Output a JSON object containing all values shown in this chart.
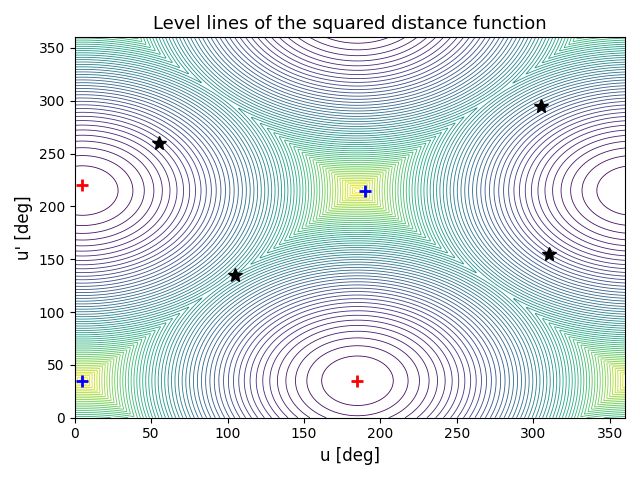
{
  "title": "Level lines of the squared distance function",
  "xlabel": "u [deg]",
  "ylabel": "u' [deg]",
  "xlim": [
    0,
    360
  ],
  "ylim": [
    0,
    360
  ],
  "xticks": [
    0,
    50,
    100,
    150,
    200,
    250,
    300,
    350
  ],
  "yticks": [
    0,
    50,
    100,
    150,
    200,
    250,
    300,
    350
  ],
  "n_contour_levels": 60,
  "colormap": "viridis",
  "blue_plus_points": [
    [
      5,
      35
    ],
    [
      190,
      215
    ]
  ],
  "red_plus_points": [
    [
      5,
      220
    ],
    [
      185,
      35
    ]
  ],
  "black_star_points": [
    [
      55,
      260
    ],
    [
      105,
      135
    ],
    [
      305,
      295
    ],
    [
      310,
      155
    ]
  ],
  "marker_size_plus": 8,
  "marker_size_star": 10,
  "title_fontsize": 13,
  "axis_fontsize": 12,
  "min1": [
    185,
    35
  ],
  "min2": [
    5,
    220
  ]
}
